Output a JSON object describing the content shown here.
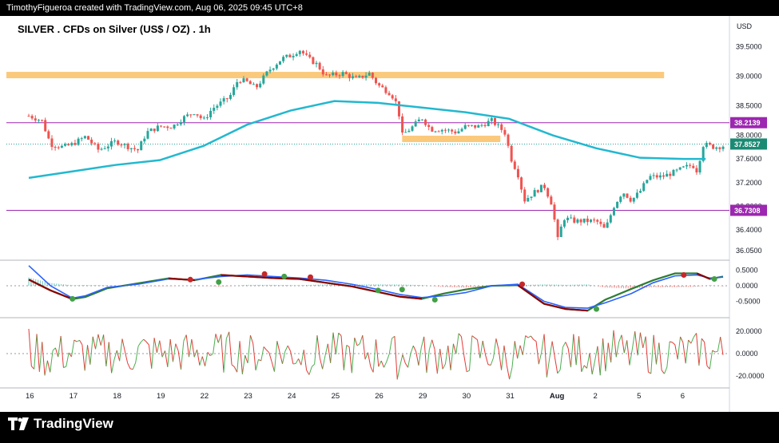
{
  "credit": "TimothyFigueroa created with TradingView.com, Aug 06, 2025 09:45 UTC+8",
  "brand": "TradingView",
  "colors": {
    "up": "#26a69a",
    "down": "#ef5350",
    "ma": "#22b8cf",
    "zone": "#fbc97c",
    "level_line": "#9c27b0",
    "macd_line": "#2962ff",
    "signal_line": "#2e7d32",
    "rsi_up": "#4caf50",
    "rsi_down": "#e53935"
  },
  "chart_data": [
    {
      "type": "candlestick",
      "title": "SILVER . CFDs on Silver (US$ / OZ) . 1h",
      "currency": "USD",
      "y_ticks": [
        "39.5000",
        "39.0000",
        "38.5000",
        "38.0000",
        "37.6000",
        "37.2000",
        "36.8000",
        "36.4000",
        "36.0500"
      ],
      "ylim": [
        35.9,
        39.75
      ],
      "x_ticks": [
        "16",
        "17",
        "18",
        "19",
        "22",
        "23",
        "24",
        "25",
        "26",
        "29",
        "30",
        "31",
        "Aug",
        "2",
        "5",
        "6"
      ],
      "price_labels": [
        "38.2139",
        "37.8527",
        "36.7308"
      ],
      "levels": [
        38.2139,
        36.7308
      ],
      "last_price": 37.8527,
      "zones": [
        {
          "y": 39.02,
          "x_from": 0.0,
          "x_to": 14.55
        },
        {
          "y": 37.94,
          "x_from": 8.55,
          "x_to": 10.8
        }
      ],
      "moving_average": [
        [
          0.0,
          37.28
        ],
        [
          1.0,
          37.39
        ],
        [
          2.0,
          37.5
        ],
        [
          3.0,
          37.58
        ],
        [
          4.0,
          37.82
        ],
        [
          5.0,
          38.18
        ],
        [
          6.0,
          38.42
        ],
        [
          7.0,
          38.58
        ],
        [
          8.0,
          38.55
        ],
        [
          9.0,
          38.47
        ],
        [
          10.0,
          38.39
        ],
        [
          11.0,
          38.28
        ],
        [
          12.0,
          38.0
        ],
        [
          13.0,
          37.78
        ],
        [
          14.0,
          37.62
        ],
        [
          15.0,
          37.6
        ],
        [
          15.5,
          37.6
        ]
      ],
      "close_path": [
        [
          0.0,
          38.33
        ],
        [
          0.3,
          38.25
        ],
        [
          0.5,
          37.85
        ],
        [
          0.8,
          37.8
        ],
        [
          1.0,
          37.85
        ],
        [
          1.3,
          37.98
        ],
        [
          1.6,
          37.75
        ],
        [
          2.0,
          37.9
        ],
        [
          2.3,
          37.8
        ],
        [
          2.5,
          37.75
        ],
        [
          2.7,
          38.05
        ],
        [
          3.0,
          38.15
        ],
        [
          3.3,
          38.15
        ],
        [
          3.5,
          38.28
        ],
        [
          3.8,
          38.4
        ],
        [
          4.0,
          38.25
        ],
        [
          4.2,
          38.45
        ],
        [
          4.4,
          38.55
        ],
        [
          4.6,
          38.65
        ],
        [
          4.8,
          38.95
        ],
        [
          5.0,
          38.9
        ],
        [
          5.2,
          38.8
        ],
        [
          5.5,
          39.1
        ],
        [
          5.8,
          39.3
        ],
        [
          6.0,
          39.35
        ],
        [
          6.2,
          39.45
        ],
        [
          6.4,
          39.3
        ],
        [
          6.6,
          39.2
        ],
        [
          6.8,
          39.0
        ],
        [
          7.2,
          39.05
        ],
        [
          7.5,
          38.95
        ],
        [
          7.8,
          39.05
        ],
        [
          8.0,
          38.85
        ],
        [
          8.3,
          38.7
        ],
        [
          8.45,
          38.5
        ],
        [
          8.55,
          38.0
        ],
        [
          8.8,
          38.15
        ],
        [
          9.0,
          38.3
        ],
        [
          9.2,
          38.1
        ],
        [
          9.5,
          38.1
        ],
        [
          9.8,
          38.05
        ],
        [
          10.0,
          38.15
        ],
        [
          10.3,
          38.15
        ],
        [
          10.6,
          38.25
        ],
        [
          10.9,
          38.05
        ],
        [
          11.05,
          37.6
        ],
        [
          11.2,
          37.35
        ],
        [
          11.35,
          36.9
        ],
        [
          11.6,
          37.05
        ],
        [
          11.8,
          37.15
        ],
        [
          12.0,
          36.8
        ],
        [
          12.1,
          36.2
        ],
        [
          12.25,
          36.6
        ],
        [
          12.5,
          36.55
        ],
        [
          12.8,
          36.55
        ],
        [
          13.0,
          36.55
        ],
        [
          13.2,
          36.4
        ],
        [
          13.4,
          36.8
        ],
        [
          13.6,
          37.05
        ],
        [
          13.8,
          36.9
        ],
        [
          14.0,
          37.05
        ],
        [
          14.2,
          37.3
        ],
        [
          14.5,
          37.3
        ],
        [
          14.8,
          37.38
        ],
        [
          15.0,
          37.45
        ],
        [
          15.2,
          37.5
        ],
        [
          15.3,
          37.4
        ],
        [
          15.45,
          37.85
        ],
        [
          15.7,
          37.8
        ],
        [
          15.9,
          37.82
        ]
      ]
    },
    {
      "type": "line",
      "indicator": "MACD",
      "y_ticks": [
        "0.5000",
        "0.0000",
        "-0.5000"
      ],
      "ylim": [
        -0.9,
        0.8
      ],
      "macd_line": [
        [
          0.0,
          0.65
        ],
        [
          0.5,
          0.0
        ],
        [
          1.0,
          -0.4
        ],
        [
          1.3,
          -0.32
        ],
        [
          1.8,
          -0.05
        ],
        [
          2.5,
          0.05
        ],
        [
          3.2,
          0.22
        ],
        [
          3.8,
          0.2
        ],
        [
          4.4,
          0.3
        ],
        [
          5.0,
          0.35
        ],
        [
          5.6,
          0.3
        ],
        [
          6.2,
          0.25
        ],
        [
          6.8,
          0.18
        ],
        [
          7.4,
          0.05
        ],
        [
          8.0,
          -0.12
        ],
        [
          8.5,
          -0.28
        ],
        [
          9.0,
          -0.38
        ],
        [
          9.5,
          -0.32
        ],
        [
          10.0,
          -0.22
        ],
        [
          10.6,
          0.0
        ],
        [
          11.2,
          0.05
        ],
        [
          11.8,
          -0.5
        ],
        [
          12.3,
          -0.7
        ],
        [
          12.8,
          -0.72
        ],
        [
          13.2,
          -0.55
        ],
        [
          13.8,
          -0.25
        ],
        [
          14.3,
          0.1
        ],
        [
          14.8,
          0.32
        ],
        [
          15.3,
          0.35
        ],
        [
          15.6,
          0.25
        ],
        [
          15.9,
          0.28
        ]
      ],
      "signal_line": [
        [
          0.0,
          0.2
        ],
        [
          0.5,
          -0.15
        ],
        [
          1.0,
          -0.43
        ],
        [
          1.3,
          -0.36
        ],
        [
          1.8,
          -0.08
        ],
        [
          2.5,
          0.08
        ],
        [
          3.2,
          0.24
        ],
        [
          3.8,
          0.18
        ],
        [
          4.4,
          0.35
        ],
        [
          5.0,
          0.3
        ],
        [
          5.6,
          0.25
        ],
        [
          6.2,
          0.22
        ],
        [
          6.8,
          0.1
        ],
        [
          7.4,
          -0.02
        ],
        [
          8.0,
          -0.2
        ],
        [
          8.5,
          -0.35
        ],
        [
          9.0,
          -0.42
        ],
        [
          9.5,
          -0.25
        ],
        [
          10.0,
          -0.12
        ],
        [
          10.6,
          0.0
        ],
        [
          11.2,
          0.02
        ],
        [
          11.8,
          -0.58
        ],
        [
          12.3,
          -0.75
        ],
        [
          12.8,
          -0.8
        ],
        [
          13.2,
          -0.45
        ],
        [
          13.8,
          -0.1
        ],
        [
          14.3,
          0.18
        ],
        [
          14.8,
          0.4
        ],
        [
          15.3,
          0.4
        ],
        [
          15.6,
          0.22
        ],
        [
          15.9,
          0.3
        ]
      ],
      "cross_markers": [
        [
          1.0,
          -0.42,
          "up"
        ],
        [
          3.7,
          0.2,
          "down"
        ],
        [
          4.35,
          0.12,
          "up"
        ],
        [
          5.4,
          0.38,
          "down"
        ],
        [
          5.85,
          0.3,
          "up"
        ],
        [
          6.45,
          0.28,
          "down"
        ],
        [
          8.0,
          -0.15,
          "up"
        ],
        [
          8.55,
          -0.12,
          "up"
        ],
        [
          9.3,
          -0.45,
          "up"
        ],
        [
          11.3,
          0.05,
          "down"
        ],
        [
          13.0,
          -0.75,
          "up"
        ],
        [
          15.0,
          0.35,
          "down"
        ],
        [
          15.7,
          0.22,
          "up"
        ]
      ]
    },
    {
      "type": "line",
      "indicator": "oscillator",
      "y_ticks": [
        "20.0000",
        "0.0000",
        "-20.0000"
      ],
      "ylim": [
        -30,
        30
      ]
    }
  ]
}
